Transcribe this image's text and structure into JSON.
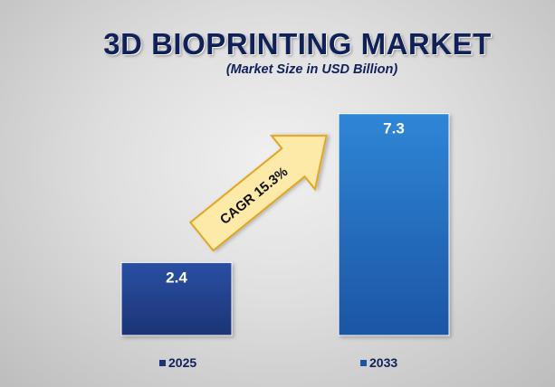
{
  "title": "3D BIOPRINTING MARKET",
  "subtitle": "(Market Size in USD Billion)",
  "annotation": "CAGR 15.3%",
  "colors": {
    "bar_2025_top": "#2a4fa3",
    "bar_2025_bottom": "#1c3475",
    "bar_2033_top": "#2f86d6",
    "bar_2033_bottom": "#1c55a4",
    "arrow_fill": "#fde9a8",
    "arrow_stroke": "#e3a51f",
    "title": "#10215a"
  },
  "chart_data": {
    "type": "bar",
    "categories": [
      "2025",
      "2033"
    ],
    "values": [
      2.4,
      7.3
    ],
    "data_labels": [
      "2.4",
      "7.3"
    ],
    "legend": [
      "2025",
      "2033"
    ],
    "grid": false,
    "legend_placement": "bottom"
  }
}
